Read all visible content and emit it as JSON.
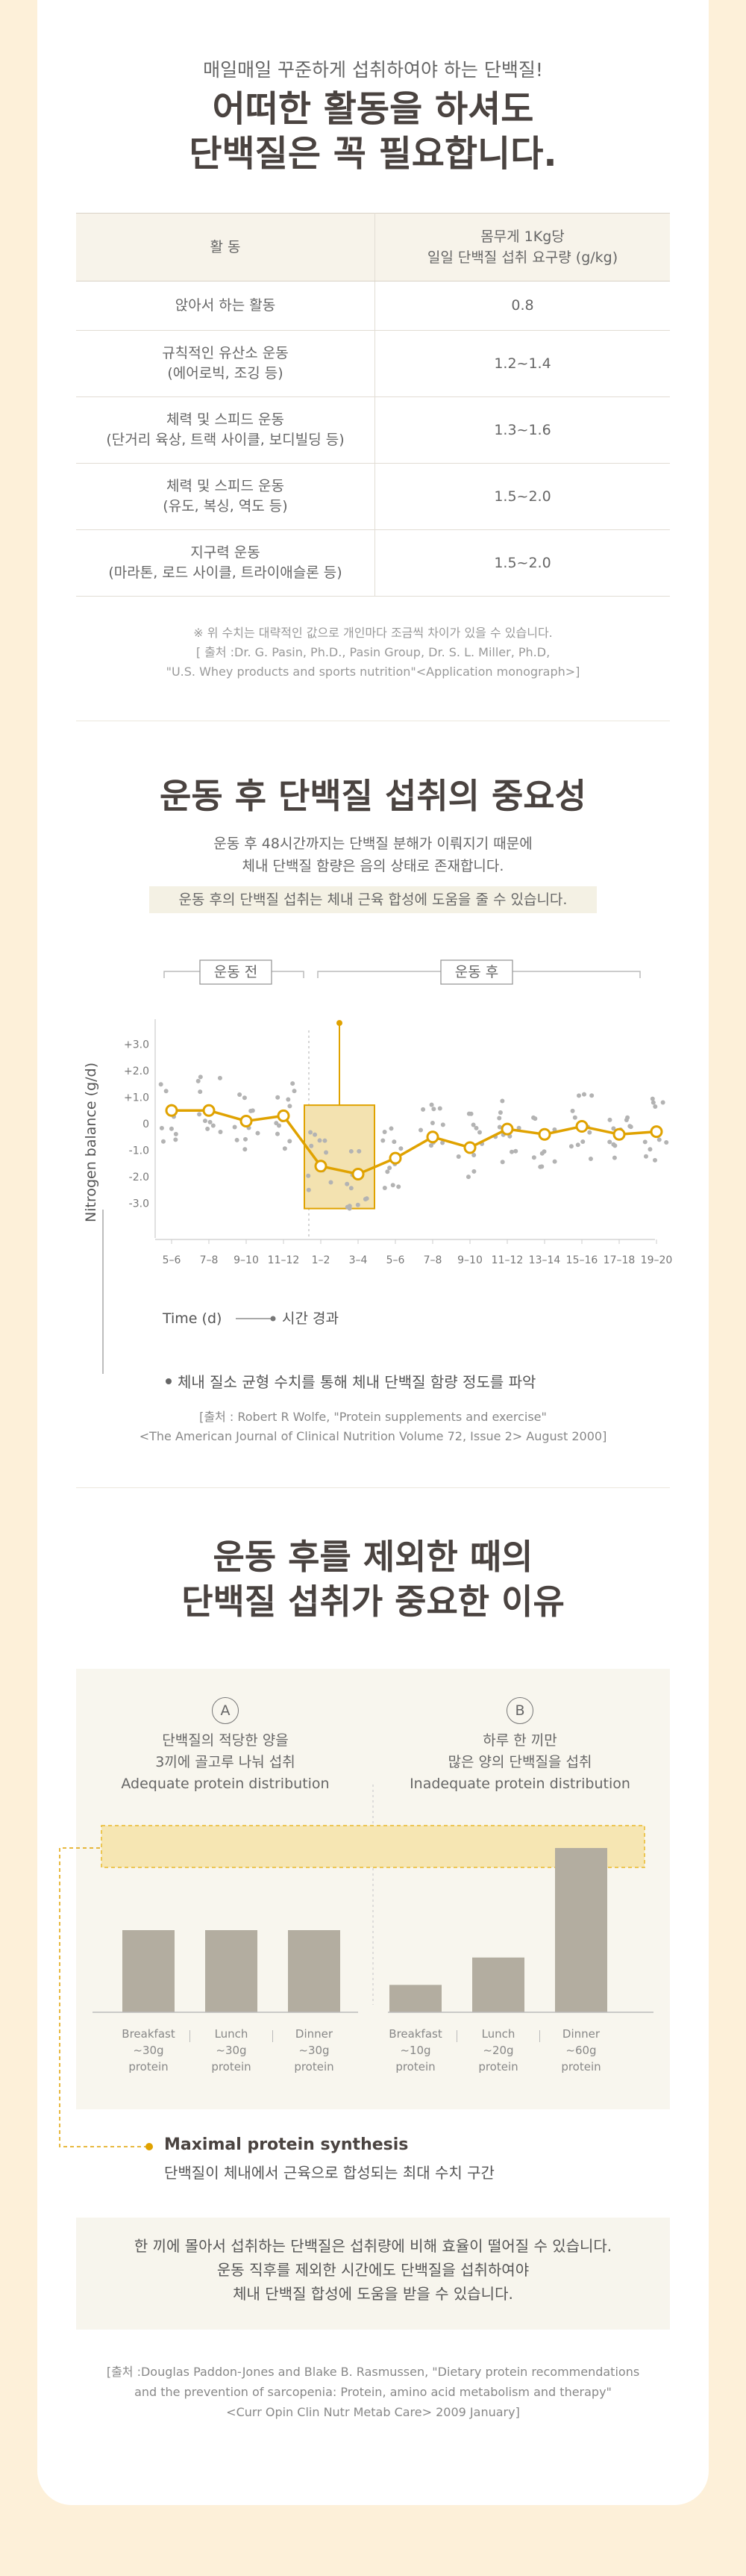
{
  "section1": {
    "subtitle": "매일매일 꾸준하게 섭취하여야 하는 단백질!",
    "title_line1": "어떠한 활동을 하셔도",
    "title_line2": "단백질은 꼭 필요합니다.",
    "table": {
      "header_activity": "활   동",
      "header_req_line1": "몸무게 1Kg당",
      "header_req_line2": "일일 단백질 섭취 요구량 (g/kg)",
      "rows": [
        {
          "activity_line1": "앉아서 하는 활동",
          "activity_line2": "",
          "value": "0.8"
        },
        {
          "activity_line1": "규칙적인 유산소 운동",
          "activity_line2": "(에어로빅, 조깅 등)",
          "value": "1.2~1.4"
        },
        {
          "activity_line1": "체력 및 스피드 운동",
          "activity_line2": "(단거리 육상, 트랙 사이클, 보디빌딩 등)",
          "value": "1.3~1.6"
        },
        {
          "activity_line1": "체력 및 스피드 운동",
          "activity_line2": "(유도, 복싱, 역도 등)",
          "value": "1.5~2.0"
        },
        {
          "activity_line1": "지구력 운동",
          "activity_line2": "(마라톤, 로드 사이클, 트라이애슬론 등)",
          "value": "1.5~2.0"
        }
      ]
    },
    "note_line1": "※ 위 수치는 대략적인 값으로 개인마다 조금씩 차이가 있을 수 있습니다.",
    "note_line2": "[ 출처 :Dr. G. Pasin, Ph.D., Pasin Group, Dr. S. L. Miller, Ph.D,",
    "note_line3": "\"U.S. Whey products and sports nutrition\"<Application monograph>]"
  },
  "section2": {
    "title": "운동 후 단백질 섭취의 중요성",
    "desc_line1": "운동 후 48시간까지는 단백질 분해가 이뤄지기 때문에",
    "desc_line2": "체내 단백질 함량은 음의 상태로 존재합니다.",
    "highlight": "운동 후의 단백질 섭취는 체내 근육 합성에 도움을 줄 수 있습니다.",
    "before_label": "운동 전",
    "after_label": "운동 후",
    "time_label": "시간 경과",
    "caption": "체내 질소 균형 수치를 통해 체내 단백질 함량 정도를 파악",
    "source_line1": "[출처 : Robert R Wolfe, \"Protein supplements and exercise\"",
    "source_line2": "<The American Journal of Clinical Nutrition Volume 72, Issue 2> August 2000]"
  },
  "chart_data": {
    "type": "line",
    "title": "",
    "xlabel": "Time (d)",
    "ylabel": "Nitrogen balance (g/d)",
    "categories": [
      "5–6",
      "7–8",
      "9–10",
      "11–12",
      "1–2",
      "3–4",
      "5–6",
      "7–8",
      "9–10",
      "11–12",
      "13–14",
      "15–16",
      "17–18",
      "19–20"
    ],
    "y_ticks": [
      "+3.0",
      "+2.0",
      "+1.0",
      "0",
      "-1.0",
      "-2.0",
      "-3.0"
    ],
    "ylim": [
      -3.8,
      3.0
    ],
    "series": [
      {
        "values": [
          0.5,
          0.5,
          0.1,
          0.3,
          -1.6,
          -1.9,
          -1.3,
          -0.5,
          -0.9,
          -0.2,
          -0.4,
          -0.1,
          -0.4,
          -0.3
        ]
      }
    ],
    "highlight_categories": [
      "1–2",
      "3–4"
    ],
    "highlight_range": [
      -3.2,
      0.7
    ],
    "highlight_line_top": 3.8,
    "colors": {
      "line": "#e0a200",
      "box": "#f3e2b0",
      "dots": "#b3b3b3"
    }
  },
  "section3": {
    "title_line1": "운동 후를 제외한 때의",
    "title_line2": "단백질 섭취가 중요한 이유",
    "A": {
      "mark": "A",
      "line1": "단백질의 적당한 양을",
      "line2": "3끼에 골고루 나눠 섭취",
      "line3": "Adequate protein distribution"
    },
    "B": {
      "mark": "B",
      "line1": "하루 한 끼만",
      "line2": "많은 양의 단백질을 섭취",
      "line3": "Inadequate protein distribution"
    },
    "bars": [
      {
        "meal": "Breakfast",
        "amount": "~30g",
        "unit": "protein",
        "value": 30
      },
      {
        "meal": "Lunch",
        "amount": "~30g",
        "unit": "protein",
        "value": 30
      },
      {
        "meal": "Dinner",
        "amount": "~30g",
        "unit": "protein",
        "value": 30
      },
      {
        "meal": "Breakfast",
        "amount": "~10g",
        "unit": "protein",
        "value": 10
      },
      {
        "meal": "Lunch",
        "amount": "~20g",
        "unit": "protein",
        "value": 20
      },
      {
        "meal": "Dinner",
        "amount": "~60g",
        "unit": "protein",
        "value": 60
      }
    ],
    "mps_title": "Maximal protein synthesis",
    "mps_desc": "단백질이 체내에서 근육으로 합성되는 최대 수치 구간",
    "body_line1": "한 끼에 몰아서 섭취하는 단백질은 섭취량에 비해 효율이 떨어질 수 있습니다.",
    "body_line2": "운동 직후를 제외한 시간에도 단백질을 섭취하여야",
    "body_line3": "체내 단백질 합성에 도움을 받을 수 있습니다.",
    "source_line1": "[출처 :Douglas Paddon-Jones and Blake B. Rasmussen, \"Dietary protein recommendations",
    "source_line2": "and the prevention of sarcopenia: Protein, amino acid metabolism and therapy\"",
    "source_line3": "<Curr Opin Clin Nutr Metab Care> 2009 January]"
  }
}
